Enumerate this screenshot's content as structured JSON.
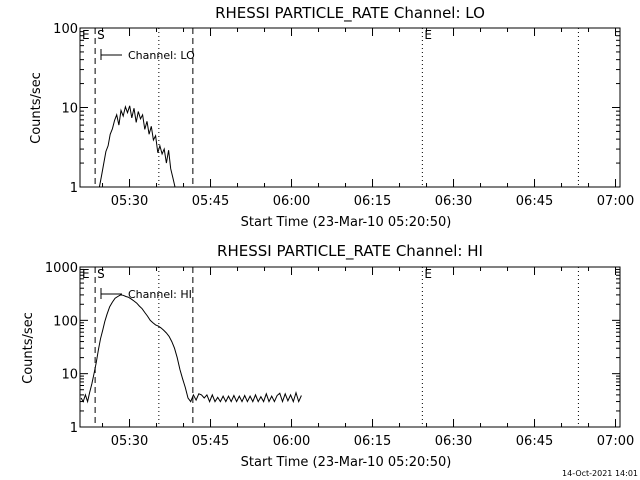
{
  "footer": {
    "timestamp": "14-Oct-2021 14:01"
  },
  "chart_data": [
    {
      "type": "line",
      "title": "RHESSI PARTICLE_RATE Channel: LO",
      "xlabel": "Start Time (23-Mar-10 05:20:50)",
      "ylabel": "Counts/sec",
      "x_unit": "minutes since 05:20:50",
      "xlim": [
        0,
        100
      ],
      "ylim": [
        1,
        100
      ],
      "yscale": "log",
      "x_ticks": [
        {
          "label": "05:30",
          "value": 9.17
        },
        {
          "label": "05:45",
          "value": 24.17
        },
        {
          "label": "06:00",
          "value": 39.17
        },
        {
          "label": "06:15",
          "value": 54.17
        },
        {
          "label": "06:30",
          "value": 69.17
        },
        {
          "label": "06:45",
          "value": 84.17
        },
        {
          "label": "07:00",
          "value": 99.17
        }
      ],
      "y_ticks": [
        {
          "label": "1",
          "value": 1
        },
        {
          "label": "10",
          "value": 10
        },
        {
          "label": "100",
          "value": 100
        }
      ],
      "legend": {
        "entries": [
          "Channel: LO"
        ],
        "placement": "top-left"
      },
      "markers": [
        {
          "label": "E",
          "x": 0,
          "style": "none"
        },
        {
          "label": "S",
          "x": 2.8,
          "style": "dashed"
        },
        {
          "label": "",
          "x": 14.6,
          "style": "dotted"
        },
        {
          "label": "",
          "x": 20.9,
          "style": "dashed"
        },
        {
          "label": "E",
          "x": 63.4,
          "style": "dotted"
        },
        {
          "label": "",
          "x": 92.3,
          "style": "dotted"
        }
      ],
      "series": [
        {
          "name": "Channel: LO",
          "x": [
            3.6,
            4.0,
            4.4,
            4.8,
            5.2,
            5.6,
            6.0,
            6.4,
            6.8,
            7.2,
            7.6,
            8.0,
            8.4,
            8.8,
            9.2,
            9.6,
            10.0,
            10.4,
            10.8,
            11.2,
            11.6,
            12.0,
            12.4,
            12.8,
            13.2,
            13.6,
            14.0,
            14.4,
            14.8,
            15.2,
            15.6,
            16.0,
            16.4,
            16.8,
            17.2,
            17.6
          ],
          "y": [
            1.0,
            1.4,
            2.0,
            2.8,
            3.3,
            4.6,
            5.4,
            6.9,
            8.1,
            6.0,
            9.2,
            7.8,
            10.2,
            8.6,
            10.5,
            7.4,
            9.8,
            6.5,
            8.9,
            7.2,
            8.1,
            5.3,
            6.7,
            4.6,
            5.8,
            3.9,
            4.4,
            2.7,
            3.3,
            2.6,
            3.0,
            2.0,
            2.9,
            1.7,
            1.3,
            1.0
          ]
        }
      ]
    },
    {
      "type": "line",
      "title": "RHESSI PARTICLE_RATE Channel: HI",
      "xlabel": "Start Time (23-Mar-10 05:20:50)",
      "ylabel": "Counts/sec",
      "x_unit": "minutes since 05:20:50",
      "xlim": [
        0,
        100
      ],
      "ylim": [
        1,
        1000
      ],
      "yscale": "log",
      "x_ticks": [
        {
          "label": "05:30",
          "value": 9.17
        },
        {
          "label": "05:45",
          "value": 24.17
        },
        {
          "label": "06:00",
          "value": 39.17
        },
        {
          "label": "06:15",
          "value": 54.17
        },
        {
          "label": "06:30",
          "value": 69.17
        },
        {
          "label": "06:45",
          "value": 84.17
        },
        {
          "label": "07:00",
          "value": 99.17
        }
      ],
      "y_ticks": [
        {
          "label": "1",
          "value": 1
        },
        {
          "label": "10",
          "value": 10
        },
        {
          "label": "100",
          "value": 100
        },
        {
          "label": "1000",
          "value": 1000
        }
      ],
      "legend": {
        "entries": [
          "Channel: HI"
        ],
        "placement": "top-left"
      },
      "markers": [
        {
          "label": "E",
          "x": 0,
          "style": "none"
        },
        {
          "label": "S",
          "x": 2.8,
          "style": "dashed"
        },
        {
          "label": "",
          "x": 14.6,
          "style": "dotted"
        },
        {
          "label": "",
          "x": 20.9,
          "style": "dashed"
        },
        {
          "label": "E",
          "x": 63.4,
          "style": "dotted"
        },
        {
          "label": "",
          "x": 92.3,
          "style": "dotted"
        }
      ],
      "series": [
        {
          "name": "Channel: HI",
          "x": [
            0.2,
            0.6,
            1.0,
            1.4,
            1.8,
            2.2,
            2.6,
            3.0,
            3.4,
            3.8,
            4.2,
            4.6,
            5.0,
            5.5,
            6.0,
            6.5,
            7.0,
            7.5,
            8.0,
            8.5,
            9.0,
            9.5,
            10.0,
            10.5,
            11.0,
            11.5,
            12.0,
            12.5,
            13.0,
            13.5,
            14.0,
            14.5,
            15.0,
            15.5,
            16.0,
            16.5,
            17.0,
            17.5,
            18.0,
            18.5,
            19.0,
            19.5,
            20.0,
            20.5,
            21.0,
            21.5,
            22.0,
            22.5,
            23.0,
            23.5,
            24.0,
            24.5,
            25.0,
            25.5,
            26.0,
            26.5,
            27.0,
            27.5,
            28.0,
            28.5,
            29.0,
            29.5,
            30.0,
            30.5,
            31.0,
            31.5,
            32.0,
            32.5,
            33.0,
            33.5,
            34.0,
            34.5,
            35.0,
            35.5,
            36.0,
            36.5,
            37.0,
            37.5,
            38.0,
            38.5,
            39.0,
            39.5,
            40.0,
            40.5,
            41.0
          ],
          "y": [
            3.5,
            3.0,
            4.0,
            3.0,
            4.5,
            6.5,
            10,
            16,
            28,
            45,
            65,
            95,
            130,
            180,
            220,
            260,
            280,
            300,
            295,
            280,
            270,
            250,
            230,
            210,
            185,
            165,
            140,
            120,
            100,
            90,
            82,
            78,
            72,
            65,
            58,
            50,
            40,
            30,
            20,
            12,
            8,
            5.5,
            3.5,
            3.0,
            4.0,
            3.2,
            4.2,
            4.0,
            3.5,
            4.0,
            3.0,
            4.0,
            3.0,
            3.6,
            3.0,
            3.8,
            3.0,
            3.8,
            3.0,
            3.9,
            3.0,
            3.8,
            3.0,
            3.9,
            3.0,
            3.8,
            3.0,
            4.0,
            3.0,
            3.7,
            3.0,
            4.2,
            3.0,
            3.8,
            3.0,
            3.9,
            4.3,
            3.0,
            4.2,
            3.1,
            4.0,
            3.0,
            4.4,
            3.0,
            3.9
          ]
        }
      ]
    }
  ]
}
